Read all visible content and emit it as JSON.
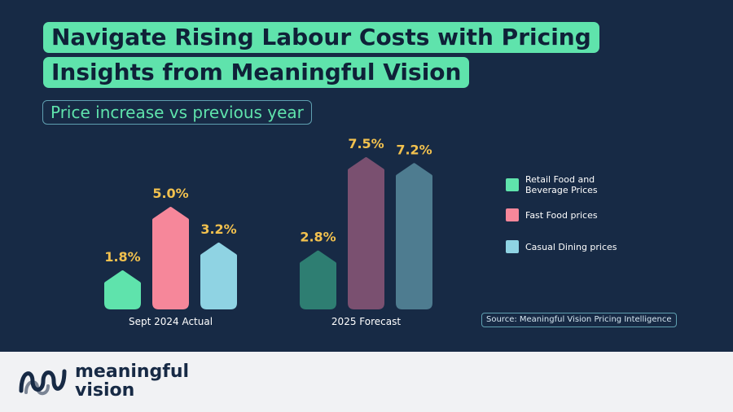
{
  "title": {
    "line1": "Navigate Rising Labour Costs with Pricing",
    "line2": "Insights from Meaningful Vision"
  },
  "subtitle": "Price increase vs previous year",
  "chart_data": {
    "type": "bar",
    "categories": [
      "Sept 2024 Actual",
      "2025 Forecast"
    ],
    "series": [
      {
        "name": "Retail Food and Beverage Prices",
        "values": [
          1.8,
          2.8
        ],
        "labels": [
          "1.8%",
          "2.8%"
        ],
        "colors": [
          "#5fe3ac",
          "#2e7e72"
        ]
      },
      {
        "name": "Fast Food prices",
        "values": [
          5.0,
          7.5
        ],
        "labels": [
          "5.0%",
          "7.5%"
        ],
        "colors": [
          "#f6879a",
          "#7a5070"
        ]
      },
      {
        "name": "Casual Dining prices",
        "values": [
          3.2,
          7.2
        ],
        "labels": [
          "3.2%",
          "7.2%"
        ],
        "colors": [
          "#8fd3e3",
          "#4e7c90"
        ]
      }
    ],
    "ylim": [
      0,
      8
    ],
    "grid": false,
    "legend_position": "right",
    "value_label_color": "#f2c14e"
  },
  "legend": {
    "items": [
      {
        "label": "Retail Food and Beverage Prices",
        "color": "#5fe3ac"
      },
      {
        "label": "Fast Food prices",
        "color": "#f6879a"
      },
      {
        "label": "Casual Dining prices",
        "color": "#8fd3e3"
      }
    ]
  },
  "source": "Source: Meaningful Vision Pricing Intelligence",
  "footer": {
    "brand_line1": "meaningful",
    "brand_line2": "vision"
  },
  "colors": {
    "background": "#172a45",
    "accent": "#5fe3ac",
    "footer_bg": "#f1f2f4",
    "text_light": "#ffffff"
  }
}
